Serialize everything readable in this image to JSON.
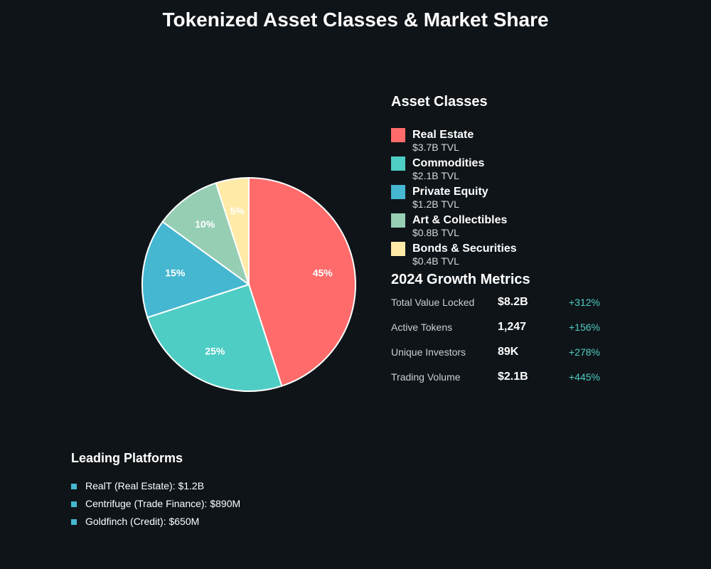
{
  "title": "Tokenized Asset Classes & Market Share",
  "chart_data": {
    "type": "pie",
    "title": "Tokenized Asset Classes & Market Share",
    "slices": [
      {
        "name": "Real Estate",
        "value": 45,
        "label": "45%",
        "tvl": "$3.7B TVL",
        "color": "#ff6b6b"
      },
      {
        "name": "Commodities",
        "value": 25,
        "label": "25%",
        "tvl": "$2.1B TVL",
        "color": "#4ecdc4"
      },
      {
        "name": "Private Equity",
        "value": 15,
        "label": "15%",
        "tvl": "$1.2B TVL",
        "color": "#45b7d1"
      },
      {
        "name": "Art & Collectibles",
        "value": 10,
        "label": "10%",
        "tvl": "$0.8B TVL",
        "color": "#96ceb4"
      },
      {
        "name": "Bonds & Securities",
        "value": 5,
        "label": "5%",
        "tvl": "$0.4B TVL",
        "color": "#ffeaa7"
      }
    ],
    "legend": {
      "title": "Asset Classes",
      "placement": "right"
    }
  },
  "growth": {
    "title": "2024 Growth Metrics",
    "rows": [
      {
        "label": "Total Value Locked",
        "value": "$8.2B",
        "change": "+312%"
      },
      {
        "label": "Active Tokens",
        "value": "1,247",
        "change": "+156%"
      },
      {
        "label": "Unique Investors",
        "value": "89K",
        "change": "+278%"
      },
      {
        "label": "Trading Volume",
        "value": "$2.1B",
        "change": "+445%"
      }
    ]
  },
  "platforms": {
    "title": "Leading Platforms",
    "items": [
      "RealT (Real Estate): $1.2B",
      "Centrifuge (Trade Finance): $890M",
      "Goldfinch (Credit): $650M"
    ]
  }
}
